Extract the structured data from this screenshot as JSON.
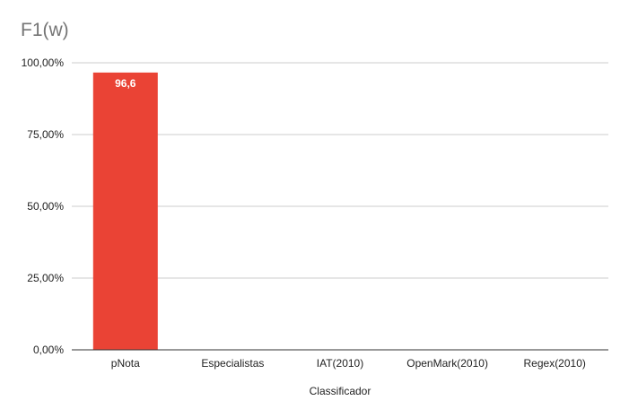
{
  "chart_data": {
    "type": "bar",
    "title": "F1(w)",
    "xlabel": "Classificador",
    "ylabel": "",
    "categories": [
      "pNota",
      "Especialistas",
      "IAT(2010)",
      "OpenMark(2010)",
      "Regex(2010)"
    ],
    "values": [
      96.6,
      null,
      null,
      null,
      null
    ],
    "data_labels": [
      "96,6",
      "",
      "",
      "",
      ""
    ],
    "ylim": [
      0,
      100
    ],
    "yticks": [
      0,
      25,
      50,
      75,
      100
    ],
    "ytick_labels": [
      "0,00%",
      "25,00%",
      "50,00%",
      "75,00%",
      "100,00%"
    ],
    "grid": true,
    "legend": "none",
    "colors": {
      "bar": "#ea4335",
      "grid": "#cccccc",
      "axis": "#333333",
      "title": "#757575"
    }
  }
}
